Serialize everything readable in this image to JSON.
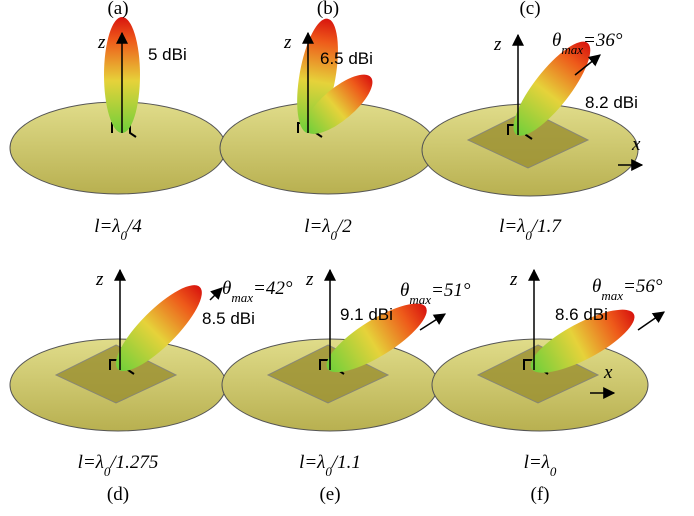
{
  "panels": [
    {
      "label": "(a)",
      "gain": "5 dBi",
      "axis_z": "z",
      "caption": {
        "main": "l=λ",
        "sub": "0",
        "rest": "/4"
      }
    },
    {
      "label": "(b)",
      "gain": "6.5 dBi",
      "axis_z": "z",
      "caption": {
        "main": "l=λ",
        "sub": "0",
        "rest": "/2"
      }
    },
    {
      "label": "(c)",
      "gain": "8.2 dBi",
      "axis_z": "z",
      "axis_x": "x",
      "theta": {
        "symbol": "θ",
        "sub": "max",
        "rest": "=36°"
      },
      "caption": {
        "main": "l=λ",
        "sub": "0",
        "rest": "/1.7"
      }
    },
    {
      "label": "(d)",
      "gain": "8.5 dBi",
      "axis_z": "z",
      "theta": {
        "symbol": "θ",
        "sub": "max",
        "rest": "=42°"
      },
      "caption": {
        "main": "l=λ",
        "sub": "0",
        "rest": "/1.275"
      }
    },
    {
      "label": "(e)",
      "gain": "9.1 dBi",
      "axis_z": "z",
      "theta": {
        "symbol": "θ",
        "sub": "max",
        "rest": "=51°"
      },
      "caption": {
        "main": "l=λ",
        "sub": "0",
        "rest": "/1.1"
      }
    },
    {
      "label": "(f)",
      "gain": "8.6 dBi",
      "axis_z": "z",
      "axis_x": "x",
      "theta": {
        "symbol": "θ",
        "sub": "max",
        "rest": "=56°"
      },
      "caption": {
        "main": "l=λ",
        "sub": "0"
      }
    }
  ]
}
